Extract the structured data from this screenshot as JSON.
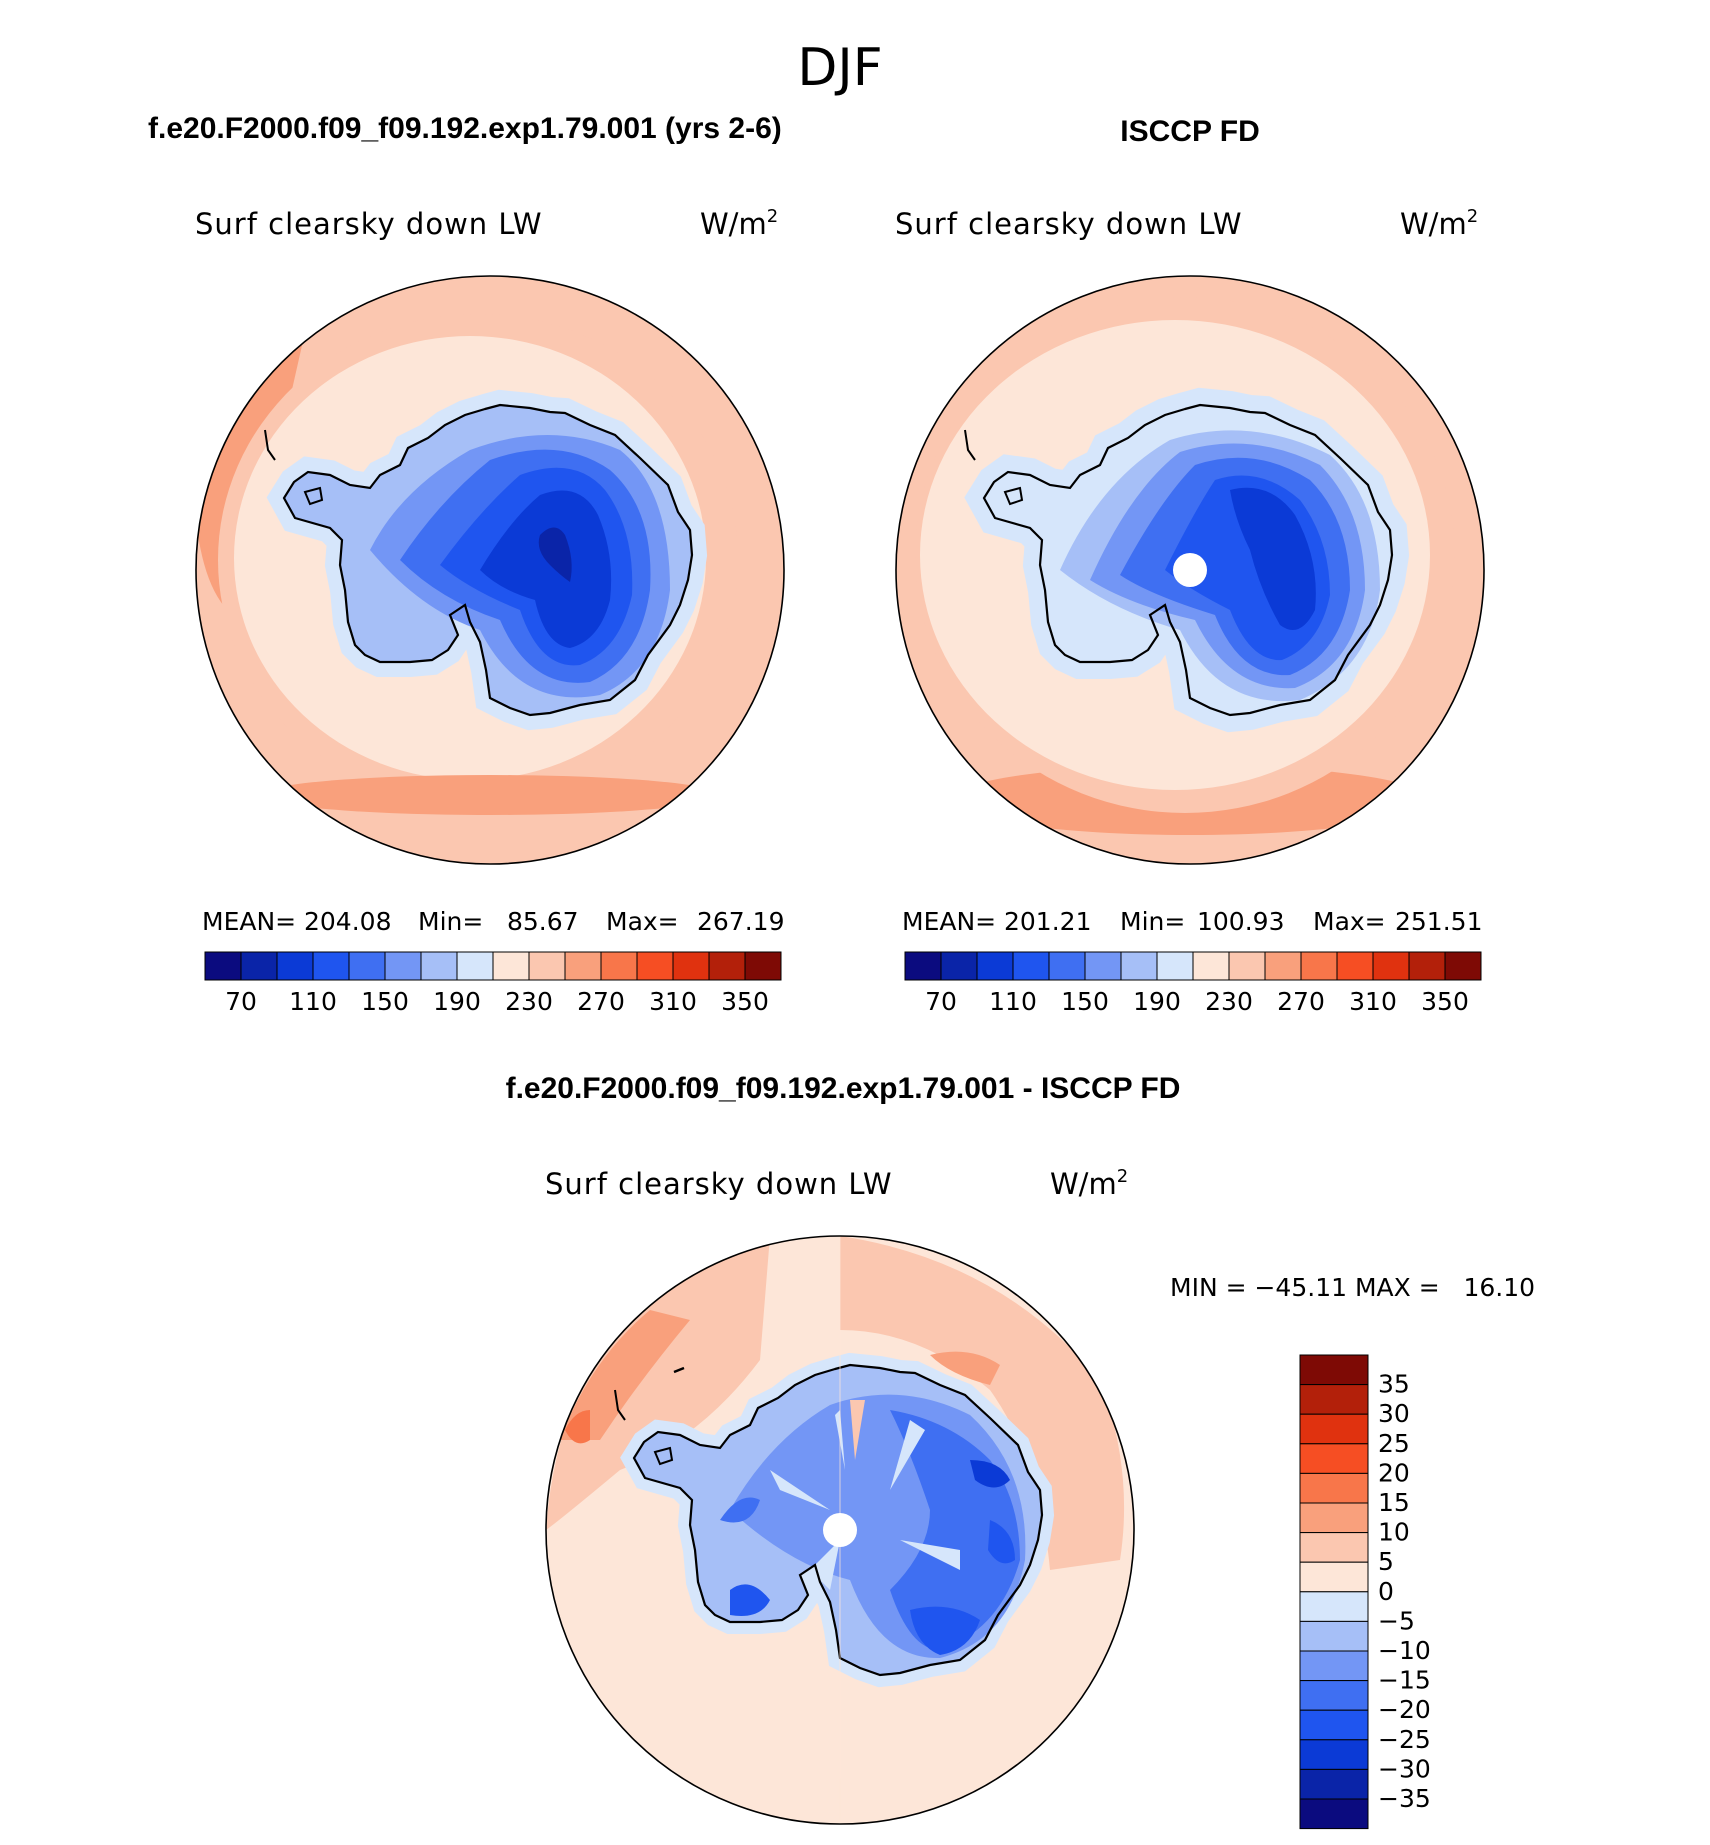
{
  "page": {
    "title": "DJF",
    "unit_main": "W/m",
    "unit_exp": "2"
  },
  "panels": [
    {
      "heading": "f.e20.F2000.f09_f09.192.exp1.79.001 (yrs 2-6)",
      "variable": "Surf clearsky down LW",
      "stats": {
        "mean_label": "MEAN=",
        "mean": "204.08",
        "min_label": "Min=",
        "min": "85.67",
        "max_label": "Max=",
        "max": "267.19"
      },
      "has_pole_hole": false
    },
    {
      "heading": "ISCCP FD",
      "variable": "Surf clearsky down LW",
      "stats": {
        "mean_label": "MEAN=",
        "mean": "201.21",
        "min_label": "Min=",
        "min": "100.93",
        "max_label": "Max=",
        "max": "251.51"
      },
      "has_pole_hole": true
    }
  ],
  "colorbar_abs": {
    "colors": [
      "#0b0b7f",
      "#0a24a8",
      "#0b3ad6",
      "#1f55ef",
      "#3f6ff2",
      "#7396f5",
      "#a6bff7",
      "#d6e6fb",
      "#fde6d8",
      "#fbc7b0",
      "#f9a07c",
      "#f8764a",
      "#f64e23",
      "#e0320f",
      "#b3200a",
      "#7e0a05"
    ],
    "labels": [
      "70",
      "110",
      "150",
      "190",
      "230",
      "270",
      "310",
      "350"
    ]
  },
  "diff_panel": {
    "heading": "f.e20.F2000.f09_f09.192.exp1.79.001 - ISCCP FD",
    "variable": "Surf clearsky down LW",
    "minmax": "MIN = −45.11 MAX =   16.10"
  },
  "colorbar_diff": {
    "colors_top_to_bottom": [
      "#7e0a05",
      "#b3200a",
      "#e0320f",
      "#f64e23",
      "#f8764a",
      "#f9a07c",
      "#fbc7b0",
      "#fde6d8",
      "#d6e6fb",
      "#a6bff7",
      "#7396f5",
      "#3f6ff2",
      "#1f55ef",
      "#0b3ad6",
      "#0a24a8",
      "#0b0b7f"
    ],
    "labels_top_to_bottom": [
      "35",
      "30",
      "25",
      "20",
      "15",
      "10",
      "5",
      "0",
      "−5",
      "−10",
      "−15",
      "−20",
      "−25",
      "−30",
      "−35"
    ]
  }
}
